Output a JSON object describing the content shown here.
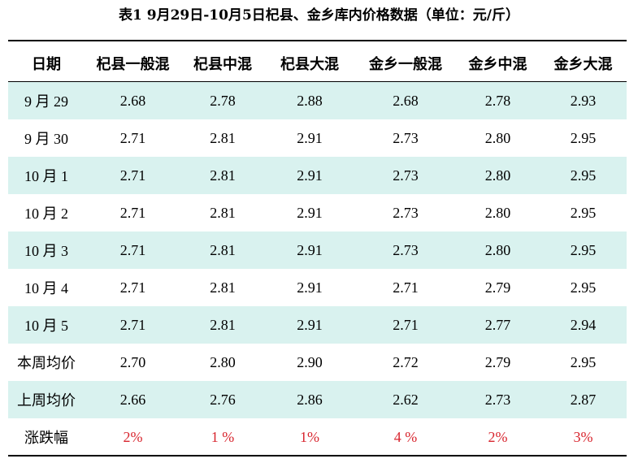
{
  "title": "表1   9月29日-10月5日杞县、金乡库内价格数据（单位：元/斤）",
  "colors": {
    "row_shade": "#d9f2ef",
    "change_text": "#d8262f"
  },
  "table": {
    "headers": [
      "日期",
      "杞县一般混",
      "杞县中混",
      "杞县大混",
      "金乡一般混",
      "金乡中混",
      "金乡大混"
    ],
    "rows": [
      [
        "9 月 29",
        "2.68",
        "2.78",
        "2.88",
        "2.68",
        "2.78",
        "2.93"
      ],
      [
        "9 月 30",
        "2.71",
        "2.81",
        "2.91",
        "2.73",
        "2.80",
        "2.95"
      ],
      [
        "10 月 1",
        "2.71",
        "2.81",
        "2.91",
        "2.73",
        "2.80",
        "2.95"
      ],
      [
        "10 月 2",
        "2.71",
        "2.81",
        "2.91",
        "2.73",
        "2.80",
        "2.95"
      ],
      [
        "10 月 3",
        "2.71",
        "2.81",
        "2.91",
        "2.73",
        "2.80",
        "2.95"
      ],
      [
        "10 月 4",
        "2.71",
        "2.81",
        "2.91",
        "2.71",
        "2.79",
        "2.95"
      ],
      [
        "10 月 5",
        "2.71",
        "2.81",
        "2.91",
        "2.71",
        "2.77",
        "2.94"
      ],
      [
        "本周均价",
        "2.70",
        "2.80",
        "2.90",
        "2.72",
        "2.79",
        "2.95"
      ],
      [
        "上周均价",
        "2.66",
        "2.76",
        "2.86",
        "2.62",
        "2.73",
        "2.87"
      ]
    ],
    "change_row": [
      "涨跌幅",
      "2%",
      "1 %",
      "1%",
      "4 %",
      "2%",
      "3%"
    ]
  }
}
